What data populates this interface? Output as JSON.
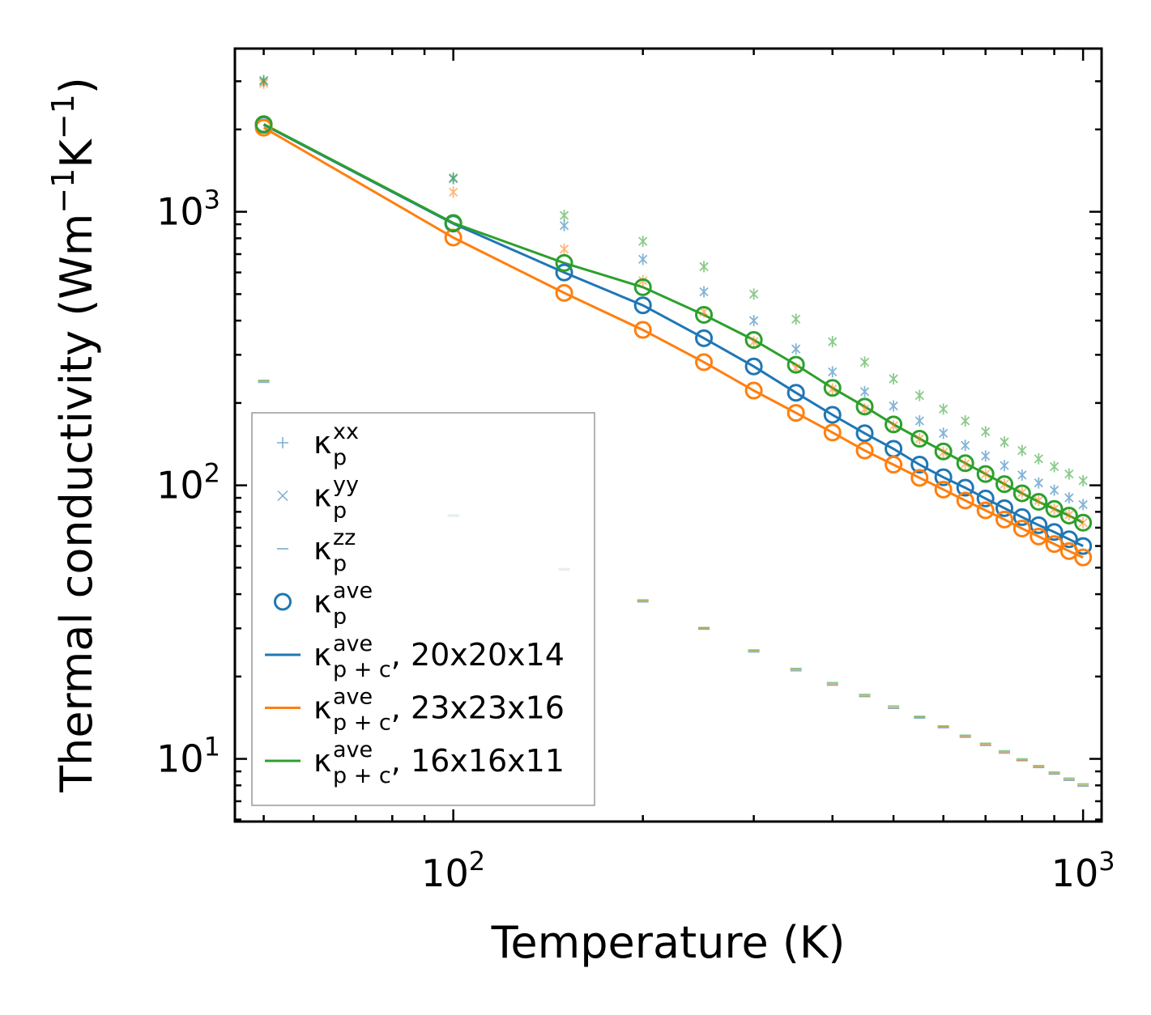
{
  "chart_data": {
    "type": "scatter",
    "xscale": "log",
    "yscale": "log",
    "xlabel": "Temperature (K)",
    "ylabel": {
      "base": "Thermal conductivity (Wm",
      "sup1": "−1",
      "mid": "K",
      "sup2": "−1",
      "end": ")"
    },
    "xlim": [
      45,
      1070
    ],
    "ylim": [
      5.9,
      3950
    ],
    "xticks": [
      {
        "value": 100,
        "base": "10",
        "exp": "2"
      },
      {
        "value": 1000,
        "base": "10",
        "exp": "3"
      }
    ],
    "yticks": [
      {
        "value": 10,
        "base": "10",
        "exp": "1"
      },
      {
        "value": 100,
        "base": "10",
        "exp": "2"
      },
      {
        "value": 1000,
        "base": "10",
        "exp": "3"
      }
    ],
    "x": [
      50,
      100,
      150,
      200,
      250,
      300,
      350,
      400,
      450,
      500,
      550,
      600,
      650,
      700,
      750,
      800,
      850,
      900,
      950,
      1000
    ],
    "series": [
      {
        "name": "kappa_p_xx, 20x20x14",
        "color": "#1f77b4",
        "marker": "star",
        "values": [
          3000,
          1320,
          890,
          670,
          510,
          400,
          315,
          260,
          220,
          195,
          172,
          155,
          140,
          128,
          118,
          109,
          102,
          96,
          90,
          85
        ]
      },
      {
        "name": "kappa_p_xx, 23x23x16",
        "color": "#ff7f0e",
        "marker": "star",
        "values": [
          2950,
          1180,
          730,
          560,
          430,
          335,
          268,
          225,
          190,
          165,
          148,
          132,
          120,
          110,
          101,
          94,
          88,
          82,
          78,
          73
        ]
      },
      {
        "name": "kappa_p_xx, 16x16x11",
        "color": "#2ca02c",
        "marker": "star",
        "values": [
          3020,
          1330,
          970,
          780,
          630,
          500,
          405,
          335,
          282,
          245,
          213,
          190,
          172,
          157,
          144,
          134,
          125,
          117,
          110,
          104
        ]
      },
      {
        "name": "kappa_p_zz, 20x20x14",
        "color": "#1f77b4",
        "marker": "dash",
        "values": [
          238,
          77,
          49,
          37.5,
          29.8,
          24.6,
          21,
          18.6,
          16.9,
          15.3,
          14.1,
          13,
          12,
          11.2,
          10.5,
          9.85,
          9.3,
          8.8,
          8.35,
          7.95
        ]
      },
      {
        "name": "kappa_p_zz, 23x23x16",
        "color": "#ff7f0e",
        "marker": "dash",
        "values": [
          240,
          77.5,
          49.3,
          37.8,
          30,
          24.8,
          21.2,
          18.8,
          17,
          15.4,
          14.2,
          13.1,
          12.1,
          11.3,
          10.6,
          9.9,
          9.35,
          8.85,
          8.4,
          8
        ]
      },
      {
        "name": "kappa_p_zz, 16x16x11",
        "color": "#2ca02c",
        "marker": "dash",
        "values": [
          242,
          78,
          49.6,
          38.1,
          30.2,
          25,
          21.4,
          19,
          17.2,
          15.6,
          14.3,
          13.2,
          12.2,
          11.4,
          10.7,
          10,
          9.45,
          8.95,
          8.5,
          8.1
        ]
      },
      {
        "name": "kappa_p_ave, 20x20x14",
        "color": "#1f77b4",
        "marker": "circle",
        "values": [
          2080,
          905,
          600,
          455,
          345,
          272,
          218,
          181,
          155,
          136,
          119,
          107,
          98,
          89.5,
          82.5,
          76.5,
          71.5,
          67.5,
          63.5,
          60
        ]
      },
      {
        "name": "kappa_p_ave, 23x23x16",
        "color": "#ff7f0e",
        "marker": "circle",
        "values": [
          2030,
          805,
          505,
          370,
          282,
          222,
          184,
          156,
          134,
          119,
          106.5,
          96.5,
          88,
          81,
          75,
          69.5,
          65,
          61,
          57.5,
          54.5
        ]
      },
      {
        "name": "kappa_p_ave, 16x16x11",
        "color": "#2ca02c",
        "marker": "circle",
        "values": [
          2090,
          910,
          650,
          530,
          420,
          340,
          276,
          227,
          194,
          167,
          148,
          133,
          120.5,
          110,
          101,
          93.5,
          87,
          82,
          77.5,
          73
        ]
      },
      {
        "name": "kappa_p+c_ave, 20x20x14",
        "color": "#1f77b4",
        "marker": "line",
        "values": [
          2080,
          905,
          600,
          455,
          345,
          272,
          218,
          181,
          155,
          136,
          119,
          107,
          98,
          89.5,
          82.5,
          76.5,
          71.5,
          67.5,
          63.5,
          60
        ]
      },
      {
        "name": "kappa_p+c_ave, 23x23x16",
        "color": "#ff7f0e",
        "marker": "line",
        "values": [
          2030,
          805,
          505,
          370,
          282,
          222,
          184,
          156,
          134,
          119,
          106.5,
          96.5,
          88,
          81,
          75,
          69.5,
          65,
          61,
          57.5,
          54.5
        ]
      },
      {
        "name": "kappa_p+c_ave, 16x16x11",
        "color": "#2ca02c",
        "marker": "line",
        "values": [
          2090,
          910,
          650,
          530,
          420,
          340,
          276,
          227,
          194,
          167,
          148,
          133,
          120.5,
          110,
          101,
          93.5,
          87,
          82,
          77.5,
          73
        ]
      }
    ],
    "legend": {
      "placement": "lower-left",
      "entries": [
        {
          "symbol": "κ",
          "sub": "p",
          "sup": "xx",
          "suffix": "",
          "marker": "plus",
          "color": "#1f77b4"
        },
        {
          "symbol": "κ",
          "sub": "p",
          "sup": "yy",
          "suffix": "",
          "marker": "x",
          "color": "#1f77b4"
        },
        {
          "symbol": "κ",
          "sub": "p",
          "sup": "zz",
          "suffix": "",
          "marker": "dash",
          "color": "#1f77b4"
        },
        {
          "symbol": "κ",
          "sub": "p",
          "sup": "ave",
          "suffix": "",
          "marker": "circle",
          "color": "#1f77b4"
        },
        {
          "symbol": "κ",
          "sub": "p + c",
          "sup": "ave",
          "suffix": ", 20x20x14",
          "marker": "line",
          "color": "#1f77b4"
        },
        {
          "symbol": "κ",
          "sub": "p + c",
          "sup": "ave",
          "suffix": ", 23x23x16",
          "marker": "line",
          "color": "#ff7f0e"
        },
        {
          "symbol": "κ",
          "sub": "p + c",
          "sup": "ave",
          "suffix": ", 16x16x11",
          "marker": "line",
          "color": "#2ca02c"
        }
      ]
    }
  }
}
